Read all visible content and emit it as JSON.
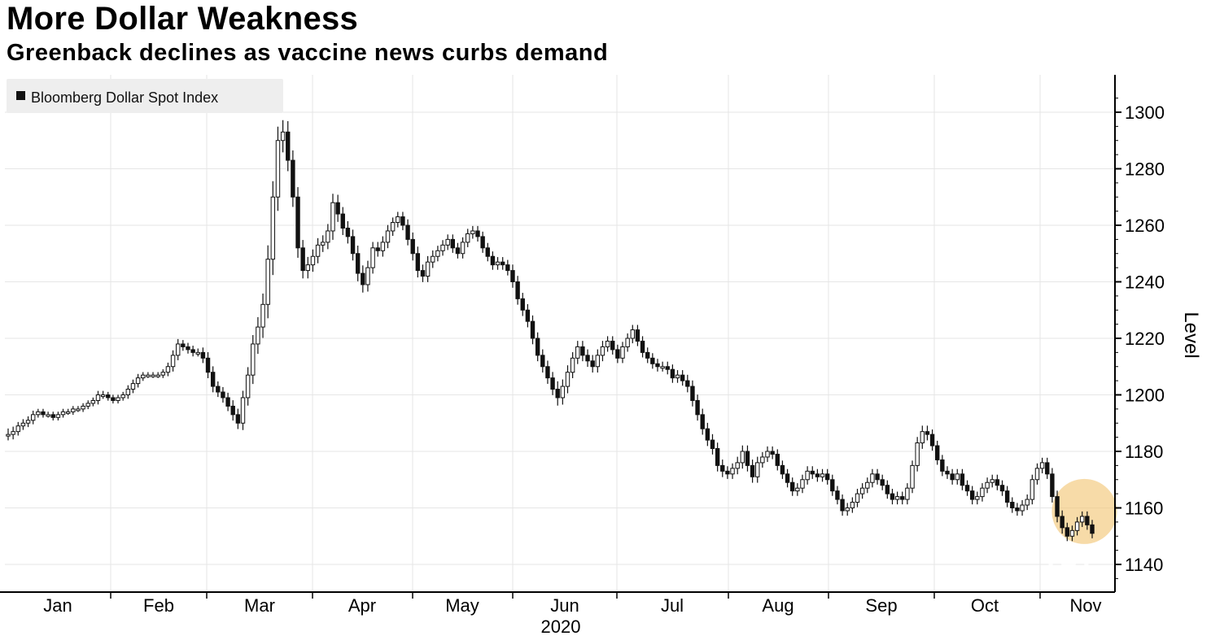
{
  "header": {
    "title": "More Dollar Weakness",
    "subtitle": "Greenback declines as vaccine news curbs demand"
  },
  "chart_data": {
    "type": "candlestick",
    "legend": {
      "label": "Bloomberg Dollar Spot Index",
      "placement": "top-left"
    },
    "ylabel": "Level",
    "y_axis_position": "right",
    "ylim": [
      1132,
      1310
    ],
    "yticks": [
      1140,
      1160,
      1180,
      1200,
      1220,
      1240,
      1260,
      1280,
      1300
    ],
    "xlabels": [
      "Jan",
      "Feb",
      "Mar",
      "Apr",
      "May",
      "Jun",
      "Jul",
      "Aug",
      "Sep",
      "Oct",
      "Nov"
    ],
    "xlabel_year": "2020",
    "grid": true,
    "highlight": {
      "date_index_from_end": 4,
      "level": 1155,
      "color": "#f3c77a"
    },
    "series": [
      {
        "values": [
          1186,
          1187,
          1189,
          1190,
          1191,
          1193,
          1194,
          1193,
          1193,
          1192,
          1193,
          1194,
          1194,
          1195,
          1195,
          1196,
          1197,
          1198,
          1200,
          1200,
          1199,
          1198,
          1199,
          1200,
          1202,
          1204,
          1206,
          1207,
          1207,
          1207,
          1207,
          1208,
          1210,
          1214,
          1218,
          1217,
          1216,
          1215,
          1215,
          1213,
          1208,
          1203,
          1201,
          1199,
          1196,
          1193,
          1190,
          1199,
          1207,
          1218,
          1224,
          1232,
          1248,
          1270,
          1290,
          1293,
          1283,
          1270,
          1252,
          1244,
          1246,
          1249,
          1253,
          1254,
          1258,
          1268,
          1264,
          1259,
          1256,
          1250,
          1243,
          1239,
          1245,
          1252,
          1251,
          1254,
          1258,
          1261,
          1263,
          1260,
          1255,
          1250,
          1244,
          1242,
          1247,
          1249,
          1251,
          1253,
          1255,
          1252,
          1250,
          1254,
          1257,
          1258,
          1256,
          1252,
          1249,
          1246,
          1247,
          1246,
          1244,
          1240,
          1234,
          1230,
          1226,
          1220,
          1214,
          1210,
          1206,
          1202,
          1199,
          1203,
          1208,
          1213,
          1217,
          1214,
          1212,
          1210,
          1214,
          1217,
          1219,
          1216,
          1213,
          1217,
          1220,
          1223,
          1219,
          1215,
          1213,
          1211,
          1210,
          1210,
          1209,
          1206,
          1207,
          1205,
          1203,
          1198,
          1193,
          1188,
          1184,
          1181,
          1175,
          1173,
          1172,
          1174,
          1176,
          1180,
          1175,
          1171,
          1176,
          1178,
          1180,
          1179,
          1175,
          1172,
          1169,
          1166,
          1167,
          1170,
          1173,
          1172,
          1171,
          1172,
          1170,
          1166,
          1163,
          1159,
          1160,
          1162,
          1165,
          1167,
          1169,
          1172,
          1170,
          1168,
          1165,
          1163,
          1164,
          1163,
          1167,
          1175,
          1183,
          1187,
          1186,
          1182,
          1177,
          1173,
          1172,
          1170,
          1172,
          1168,
          1166,
          1163,
          1164,
          1167,
          1169,
          1170,
          1168,
          1166,
          1162,
          1160,
          1159,
          1161,
          1163,
          1170,
          1174,
          1176,
          1172,
          1164,
          1157,
          1153,
          1150,
          1152,
          1155,
          1157,
          1154,
          1151
        ],
        "ranges": [
          6,
          5,
          4,
          4,
          4,
          4,
          3,
          3,
          3,
          3,
          3,
          3,
          3,
          3,
          3,
          3,
          3,
          3,
          4,
          4,
          3,
          3,
          3,
          3,
          4,
          4,
          4,
          3,
          3,
          3,
          3,
          3,
          4,
          5,
          5,
          4,
          4,
          4,
          4,
          5,
          6,
          6,
          5,
          5,
          5,
          6,
          6,
          7,
          8,
          9,
          10,
          11,
          14,
          16,
          14,
          12,
          11,
          10,
          10,
          8,
          8,
          7,
          7,
          7,
          7,
          9,
          8,
          7,
          7,
          7,
          8,
          8,
          7,
          6,
          6,
          6,
          6,
          5,
          5,
          5,
          6,
          7,
          7,
          6,
          6,
          6,
          5,
          5,
          5,
          5,
          5,
          5,
          5,
          5,
          5,
          5,
          5,
          5,
          5,
          5,
          5,
          6,
          6,
          6,
          6,
          6,
          6,
          6,
          6,
          6,
          8,
          7,
          7,
          6,
          6,
          6,
          6,
          6,
          6,
          6,
          5,
          5,
          5,
          5,
          5,
          5,
          5,
          5,
          5,
          5,
          5,
          5,
          5,
          5,
          5,
          5,
          6,
          6,
          6,
          6,
          6,
          6,
          6,
          6,
          5,
          5,
          6,
          6,
          6,
          6,
          6,
          5,
          5,
          5,
          5,
          5,
          5,
          5,
          5,
          5,
          5,
          5,
          5,
          5,
          5,
          5,
          5,
          5,
          5,
          5,
          5,
          5,
          5,
          5,
          5,
          5,
          5,
          5,
          5,
          5,
          5,
          5,
          6,
          6,
          6,
          5,
          5,
          5,
          5,
          5,
          5,
          5,
          5,
          5,
          5,
          5,
          5,
          5,
          5,
          5,
          5,
          5,
          5,
          5,
          5,
          5,
          5,
          5,
          5,
          6,
          6,
          6,
          5,
          5,
          5,
          5,
          5,
          5,
          5
        ]
      }
    ]
  },
  "watermark": {
    "text": "91PME.COM",
    "color": "#ffffff"
  }
}
